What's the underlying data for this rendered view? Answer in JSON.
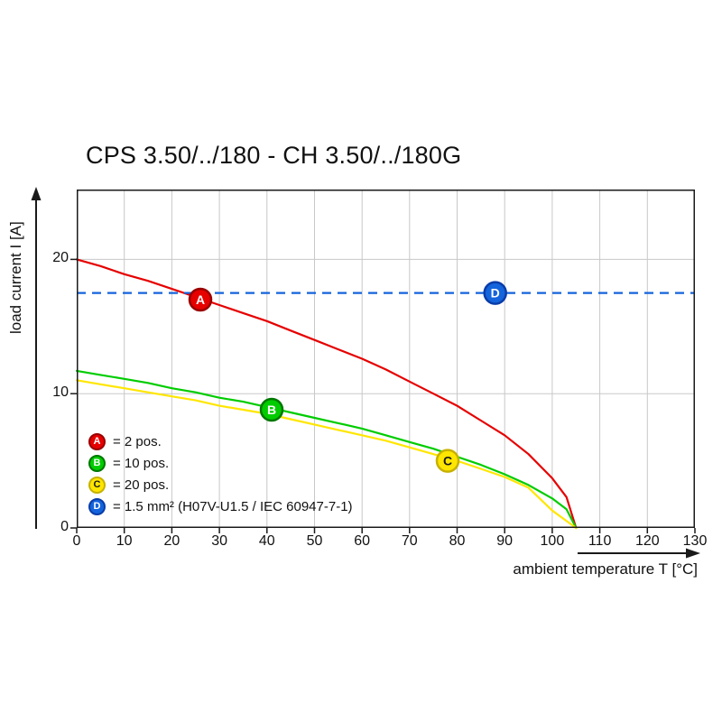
{
  "title": "CPS 3.50/../180 - CH 3.50/../180G",
  "chart_data": {
    "type": "line",
    "title": "CPS 3.50/../180 - CH 3.50/../180G",
    "xlabel": "ambient temperature T [°C]",
    "ylabel": "load current I [A]",
    "xlim": [
      0,
      130
    ],
    "ylim": [
      0,
      25.2
    ],
    "xticks": [
      0,
      10,
      20,
      30,
      40,
      50,
      60,
      70,
      80,
      90,
      100,
      110,
      120,
      130
    ],
    "yticks": [
      0,
      10,
      20
    ],
    "grid": true,
    "legend_position": "lower-left-inside",
    "colors": {
      "grid": "#c8c8c8",
      "axis": "#1a1a1a",
      "text": "#111111",
      "background": "#ffffff"
    },
    "series": [
      {
        "id": "A",
        "legend_label": "= 2 pos.",
        "type": "curve",
        "color": "#e60000",
        "border": "#990000",
        "letter_color": "#ffffff",
        "marker": {
          "x": 26,
          "y": 17
        },
        "points": [
          [
            0,
            20
          ],
          [
            5,
            19.5
          ],
          [
            10,
            18.9
          ],
          [
            15,
            18.4
          ],
          [
            20,
            17.8
          ],
          [
            25,
            17.2
          ],
          [
            30,
            16.6
          ],
          [
            35,
            16
          ],
          [
            40,
            15.4
          ],
          [
            45,
            14.7
          ],
          [
            50,
            14
          ],
          [
            55,
            13.3
          ],
          [
            60,
            12.6
          ],
          [
            65,
            11.8
          ],
          [
            70,
            10.9
          ],
          [
            75,
            10
          ],
          [
            80,
            9.1
          ],
          [
            85,
            8
          ],
          [
            90,
            6.9
          ],
          [
            95,
            5.5
          ],
          [
            100,
            3.7
          ],
          [
            103,
            2.3
          ],
          [
            105,
            0
          ]
        ]
      },
      {
        "id": "B",
        "legend_label": "= 10 pos.",
        "type": "curve",
        "color": "#00cc00",
        "border": "#007700",
        "letter_color": "#ffffff",
        "marker": {
          "x": 41,
          "y": 8.8
        },
        "points": [
          [
            0,
            11.7
          ],
          [
            5,
            11.4
          ],
          [
            10,
            11.1
          ],
          [
            15,
            10.8
          ],
          [
            20,
            10.4
          ],
          [
            25,
            10.1
          ],
          [
            30,
            9.7
          ],
          [
            35,
            9.4
          ],
          [
            40,
            9
          ],
          [
            45,
            8.6
          ],
          [
            50,
            8.2
          ],
          [
            55,
            7.8
          ],
          [
            60,
            7.4
          ],
          [
            65,
            6.9
          ],
          [
            70,
            6.4
          ],
          [
            75,
            5.9
          ],
          [
            80,
            5.3
          ],
          [
            85,
            4.7
          ],
          [
            90,
            4
          ],
          [
            95,
            3.2
          ],
          [
            100,
            2.2
          ],
          [
            103,
            1.4
          ],
          [
            105,
            0
          ]
        ]
      },
      {
        "id": "C",
        "legend_label": "= 20 pos.",
        "type": "curve",
        "color": "#ffe600",
        "border": "#c7b100",
        "letter_color": "#1a1a1a",
        "marker": {
          "x": 78,
          "y": 5
        },
        "points": [
          [
            0,
            11
          ],
          [
            5,
            10.7
          ],
          [
            10,
            10.4
          ],
          [
            15,
            10.1
          ],
          [
            20,
            9.8
          ],
          [
            25,
            9.5
          ],
          [
            30,
            9.1
          ],
          [
            35,
            8.8
          ],
          [
            40,
            8.5
          ],
          [
            45,
            8.1
          ],
          [
            50,
            7.7
          ],
          [
            55,
            7.3
          ],
          [
            60,
            6.9
          ],
          [
            65,
            6.5
          ],
          [
            70,
            6
          ],
          [
            75,
            5.5
          ],
          [
            80,
            5
          ],
          [
            85,
            4.4
          ],
          [
            90,
            3.8
          ],
          [
            95,
            3
          ],
          [
            100,
            1.3
          ],
          [
            105,
            0
          ]
        ]
      },
      {
        "id": "D",
        "legend_label": "= 1.5 mm² (H07V-U1.5 / IEC 60947-7-1)",
        "type": "hline",
        "y": 17.5,
        "dashed": true,
        "color": "#1464dc",
        "border": "#0a3ca8",
        "letter_color": "#ffffff",
        "marker": {
          "x": 88,
          "y": 17.5
        }
      }
    ]
  }
}
